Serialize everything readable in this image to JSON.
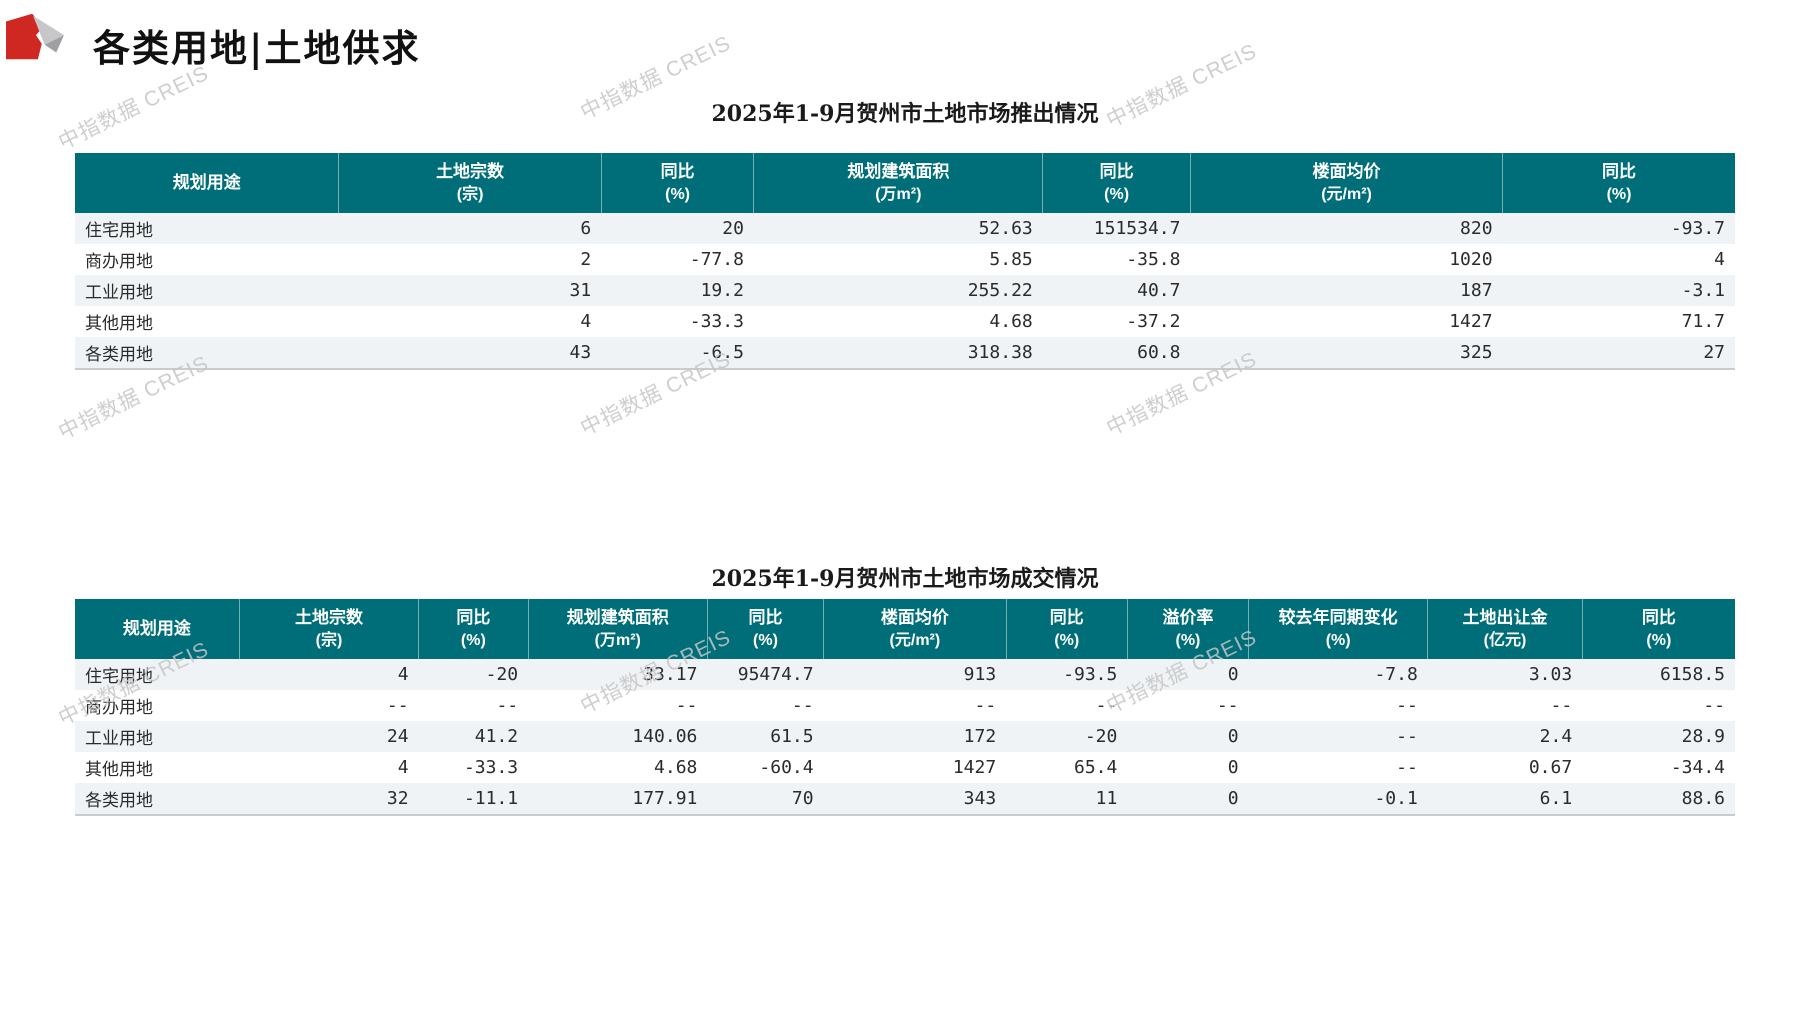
{
  "page_title": "各类用地|土地供求",
  "logo": {
    "icon": "creis-logo",
    "colors": {
      "red": "#cf2823",
      "light_gray": "#c7c7c9",
      "dark_gray": "#9fa0a2"
    }
  },
  "watermark": {
    "text": "中指数据 CREIS"
  },
  "colors": {
    "table_header_bg": "#006e78",
    "row_stripe": "#eff3f5",
    "watermark_gray": "#c6c6c6"
  },
  "chart_data": [
    {
      "type": "table",
      "title": "2025年1-9月贺州市土地市场推出情况",
      "columns": [
        "规划用途",
        "土地宗数(宗)",
        "同比(%)",
        "规划建筑面积(万m²)",
        "同比(%)",
        "楼面均价(元/m²)",
        "同比(%)"
      ],
      "rows": [
        [
          "住宅用地",
          6,
          20,
          52.63,
          151534.7,
          820,
          -93.7
        ],
        [
          "商办用地",
          2,
          -77.8,
          5.85,
          -35.8,
          1020,
          4
        ],
        [
          "工业用地",
          31,
          19.2,
          255.22,
          40.7,
          187,
          -3.1
        ],
        [
          "其他用地",
          4,
          -33.3,
          4.68,
          -37.2,
          1427,
          71.7
        ],
        [
          "各类用地",
          43,
          -6.5,
          318.38,
          60.8,
          325,
          27
        ]
      ]
    },
    {
      "type": "table",
      "title": "2025年1-9月贺州市土地市场成交情况",
      "columns": [
        "规划用途",
        "土地宗数(宗)",
        "同比(%)",
        "规划建筑面积(万m²)",
        "同比(%)",
        "楼面均价(元/m²)",
        "同比(%)",
        "溢价率(%)",
        "较去年同期变化(%)",
        "土地出让金(亿元)",
        "同比(%)"
      ],
      "rows": [
        [
          "住宅用地",
          4,
          -20,
          33.17,
          95474.7,
          913,
          -93.5,
          0,
          -7.8,
          3.03,
          6158.5
        ],
        [
          "商办用地",
          "--",
          "--",
          "--",
          "--",
          "--",
          "--",
          "--",
          "--",
          "--",
          "--"
        ],
        [
          "工业用地",
          24,
          41.2,
          140.06,
          61.5,
          172,
          -20,
          0,
          "--",
          2.4,
          28.9
        ],
        [
          "其他用地",
          4,
          -33.3,
          4.68,
          -60.4,
          1427,
          65.4,
          0,
          "--",
          0.67,
          -34.4
        ],
        [
          "各类用地",
          32,
          -11.1,
          177.91,
          70,
          343,
          11,
          0,
          -0.1,
          6.1,
          88.6
        ]
      ]
    }
  ],
  "tables": [
    {
      "title": "2025年1-9月贺州市土地市场推出情况",
      "columns": [
        [
          "规划用途",
          ""
        ],
        [
          "土地宗数",
          "(宗)"
        ],
        [
          "同比",
          "(%)"
        ],
        [
          "规划建筑面积",
          "(万m²)"
        ],
        [
          "同比",
          "(%)"
        ],
        [
          "楼面均价",
          "(元/m²)"
        ],
        [
          "同比",
          "(%)"
        ]
      ],
      "rows": [
        [
          "住宅用地",
          "6",
          "20",
          "52.63",
          "151534.7",
          "820",
          "-93.7"
        ],
        [
          "商办用地",
          "2",
          "-77.8",
          "5.85",
          "-35.8",
          "1020",
          "4"
        ],
        [
          "工业用地",
          "31",
          "19.2",
          "255.22",
          "40.7",
          "187",
          "-3.1"
        ],
        [
          "其他用地",
          "4",
          "-33.3",
          "4.68",
          "-37.2",
          "1427",
          "71.7"
        ],
        [
          "各类用地",
          "43",
          "-6.5",
          "318.38",
          "60.8",
          "325",
          "27"
        ]
      ]
    },
    {
      "title": "2025年1-9月贺州市土地市场成交情况",
      "columns": [
        [
          "规划用途",
          ""
        ],
        [
          "土地宗数",
          "(宗)"
        ],
        [
          "同比",
          "(%)"
        ],
        [
          "规划建筑面积",
          "(万m²)"
        ],
        [
          "同比",
          "(%)"
        ],
        [
          "楼面均价",
          "(元/m²)"
        ],
        [
          "同比",
          "(%)"
        ],
        [
          "溢价率",
          "(%)"
        ],
        [
          "较去年同期变化",
          "(%)"
        ],
        [
          "土地出让金",
          "(亿元)"
        ],
        [
          "同比",
          "(%)"
        ]
      ],
      "rows": [
        [
          "住宅用地",
          "4",
          "-20",
          "33.17",
          "95474.7",
          "913",
          "-93.5",
          "0",
          "-7.8",
          "3.03",
          "6158.5"
        ],
        [
          "商办用地",
          "--",
          "--",
          "--",
          "--",
          "--",
          "--",
          "--",
          "--",
          "--",
          "--"
        ],
        [
          "工业用地",
          "24",
          "41.2",
          "140.06",
          "61.5",
          "172",
          "-20",
          "0",
          "--",
          "2.4",
          "28.9"
        ],
        [
          "其他用地",
          "4",
          "-33.3",
          "4.68",
          "-60.4",
          "1427",
          "65.4",
          "0",
          "--",
          "0.67",
          "-34.4"
        ],
        [
          "各类用地",
          "32",
          "-11.1",
          "177.91",
          "70",
          "343",
          "11",
          "0",
          "-0.1",
          "6.1",
          "88.6"
        ]
      ]
    }
  ]
}
